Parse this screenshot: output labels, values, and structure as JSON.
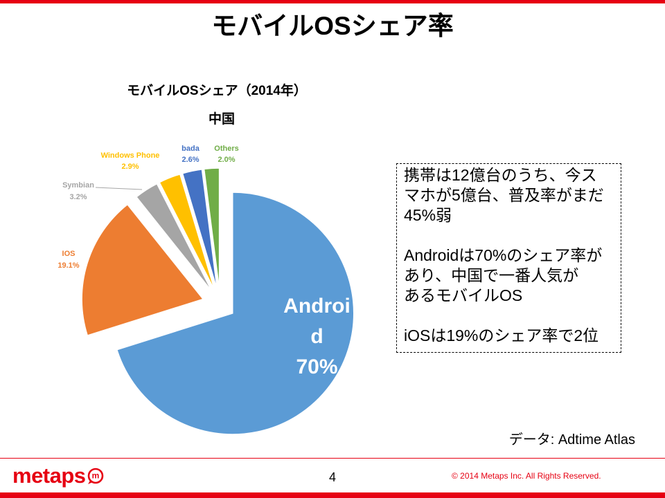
{
  "slide": {
    "title": "モバイルOSシェア率",
    "page_number": "4"
  },
  "notes": {
    "paragraphs": [
      [
        "携帯は12億台のうち、今ス",
        "マホが5億台、普及率がまだ",
        "45%弱"
      ],
      [
        "Androidは70%のシェア率が",
        "あり、中国で一番人気が",
        "あるモバイルOS"
      ],
      [
        "iOSは19%のシェア率で2位"
      ]
    ]
  },
  "source": "データ: Adtime Atlas",
  "footer": {
    "logo_text": "metaps",
    "logo_mark": "m",
    "copyright": "© 2014 Metaps Inc. All Rights Reserved."
  },
  "colors": {
    "brand_red": "#E60012"
  },
  "chart_data": {
    "type": "pie",
    "title": "モバイルOSシェア（2014年）",
    "subtitle": "中国",
    "categories": [
      "Android",
      "IOS",
      "Symbian",
      "Windows Phone",
      "bada",
      "Others"
    ],
    "values": [
      70,
      19.1,
      3.2,
      2.9,
      2.6,
      2.0
    ],
    "labels": [
      "70%",
      "19.1%",
      "3.2%",
      "2.9%",
      "2.6%",
      "2.0%"
    ],
    "colors": [
      "#5B9BD5",
      "#ED7D31",
      "#A5A5A5",
      "#FFC000",
      "#4472C4",
      "#70AD47"
    ],
    "exploded": true
  }
}
